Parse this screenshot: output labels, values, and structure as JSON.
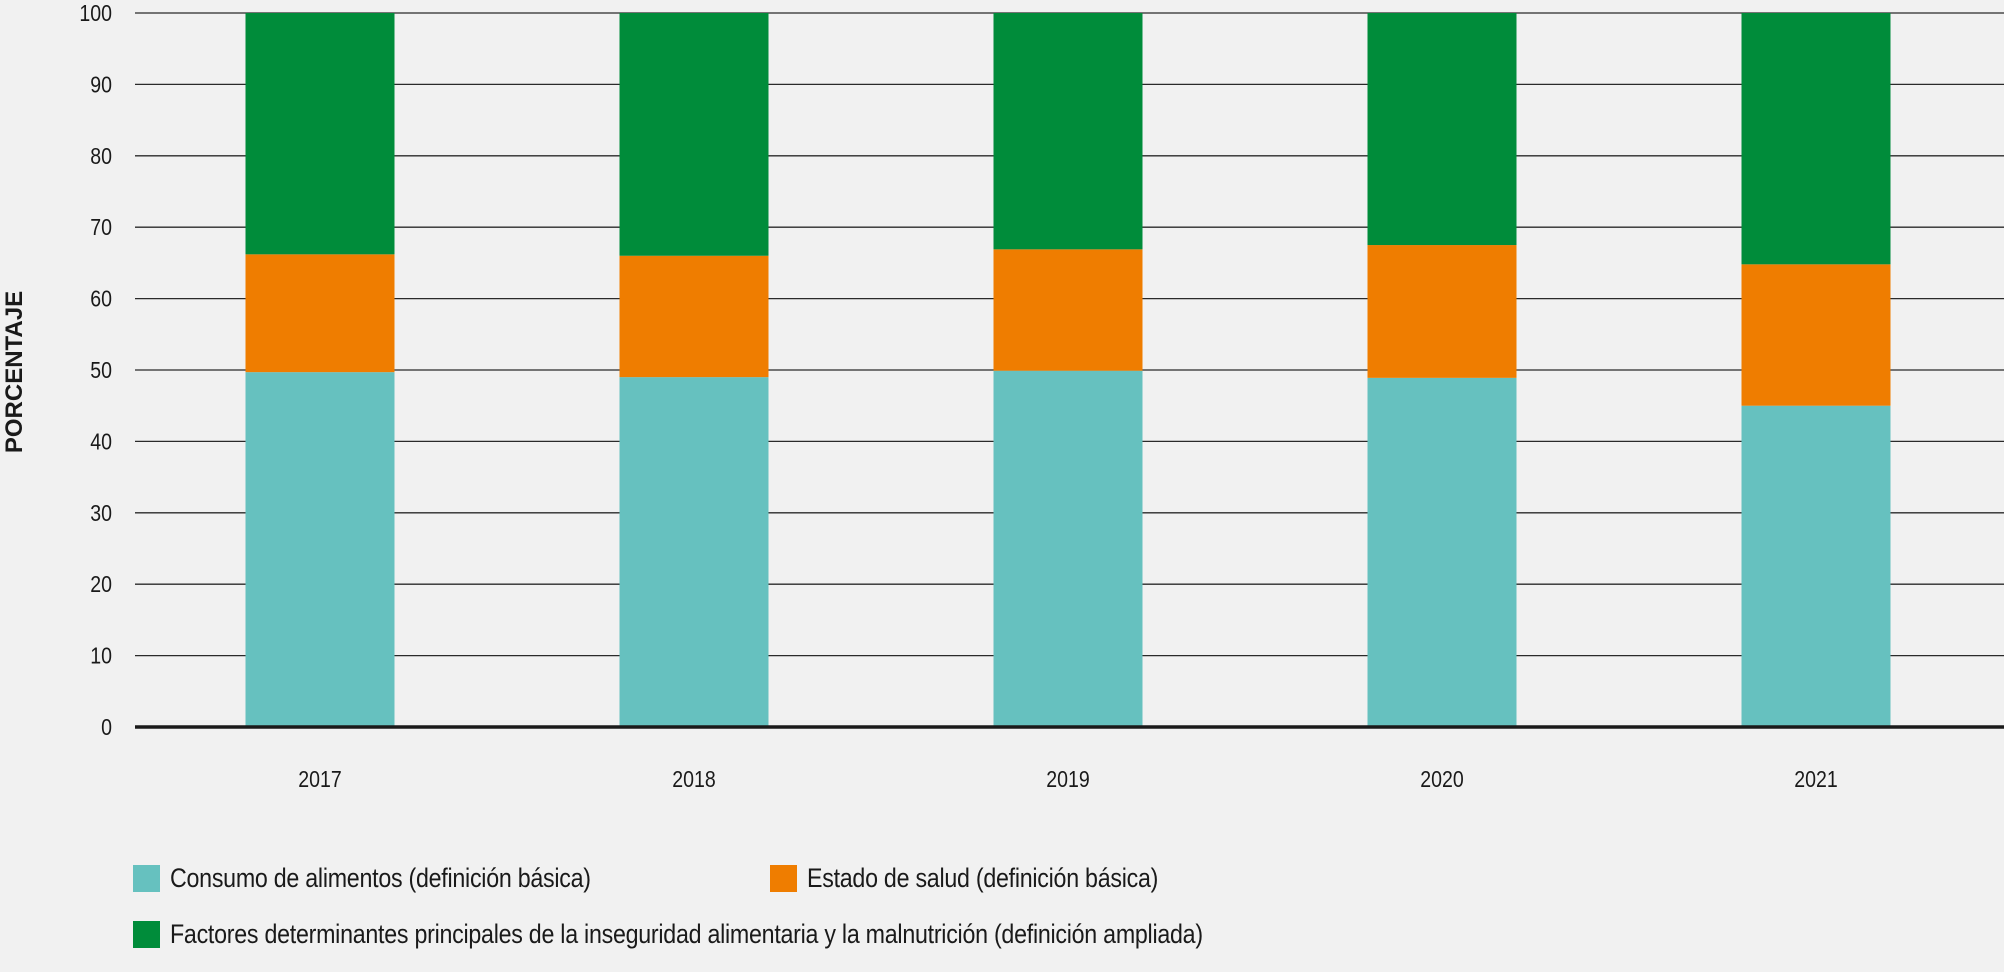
{
  "chart_data": {
    "type": "bar",
    "stacked": true,
    "title": "",
    "xlabel": "",
    "ylabel": "PORCENTAJE",
    "ylim": [
      0,
      100
    ],
    "yticks": [
      0,
      10,
      20,
      30,
      40,
      50,
      60,
      70,
      80,
      90,
      100
    ],
    "grid": true,
    "legend_position": "bottom",
    "categories": [
      "2017",
      "2018",
      "2019",
      "2020",
      "2021"
    ],
    "series": [
      {
        "name": "Consumo de alimentos (definición básica)",
        "color": "#66c1bf",
        "values": [
          49.7,
          49.0,
          49.9,
          48.9,
          45.0
        ]
      },
      {
        "name": "Estado de salud (definición básica)",
        "color": "#ef7d00",
        "values": [
          16.5,
          17.0,
          17.0,
          18.6,
          19.8
        ]
      },
      {
        "name": "Factores determinantes principales de la inseguridad alimentaria y la malnutrición (definición ampliada)",
        "color": "#008c3a",
        "values": [
          33.8,
          34.0,
          33.1,
          32.5,
          35.2
        ]
      }
    ]
  },
  "legend": {
    "items": [
      {
        "label": "Consumo de alimentos (definición básica)",
        "color": "#66c1bf"
      },
      {
        "label": "Estado de salud (definición básica)",
        "color": "#ef7d00"
      },
      {
        "label": "Factores determinantes principales de la inseguridad alimentaria y la malnutrición (definición ampliada)",
        "color": "#008c3a"
      }
    ]
  }
}
